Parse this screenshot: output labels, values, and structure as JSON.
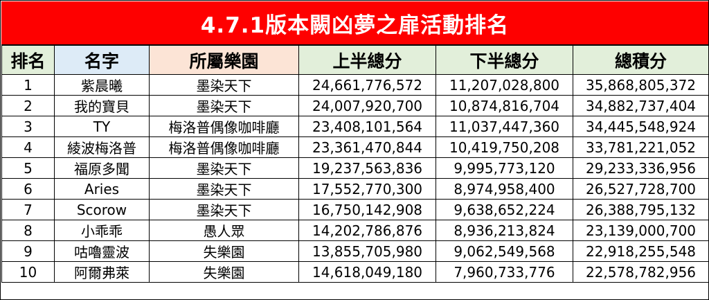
{
  "title": "4.7.1版本闕凶夢之扉活動排名",
  "colors": {
    "title_bg": "#fe0000",
    "title_text": "#ffffff",
    "header_rank_bg": "#e2efda",
    "header_name_bg": "#ddebf7",
    "header_park_bg": "#fce4d6",
    "header_num_bg": "#e2efda"
  },
  "headers": {
    "rank": "排名",
    "name": "名字",
    "park": "所屬樂園",
    "first_half": "上半總分",
    "second_half": "下半總分",
    "total": "總積分"
  },
  "rows": [
    {
      "rank": "1",
      "name": "紫晨曦",
      "park": "墨染天下",
      "first_half": "24,661,776,572",
      "second_half": "11,207,028,800",
      "total": "35,868,805,372"
    },
    {
      "rank": "2",
      "name": "我的寶貝",
      "park": "墨染天下",
      "first_half": "24,007,920,700",
      "second_half": "10,874,816,704",
      "total": "34,882,737,404"
    },
    {
      "rank": "3",
      "name": "TY",
      "park": "梅洛普偶像咖啡廳",
      "first_half": "23,408,101,564",
      "second_half": "11,037,447,360",
      "total": "34,445,548,924"
    },
    {
      "rank": "4",
      "name": "綾波梅洛普",
      "park": "梅洛普偶像咖啡廳",
      "first_half": "23,361,470,844",
      "second_half": "10,419,750,208",
      "total": "33,781,221,052"
    },
    {
      "rank": "5",
      "name": "福原多聞",
      "park": "墨染天下",
      "first_half": "19,237,563,836",
      "second_half": "9,995,773,120",
      "total": "29,233,336,956"
    },
    {
      "rank": "6",
      "name": "Aries",
      "park": "墨染天下",
      "first_half": "17,552,770,300",
      "second_half": "8,974,958,400",
      "total": "26,527,728,700"
    },
    {
      "rank": "7",
      "name": "Scorow",
      "park": "墨染天下",
      "first_half": "16,750,142,908",
      "second_half": "9,638,652,224",
      "total": "26,388,795,132"
    },
    {
      "rank": "8",
      "name": "小乖乖",
      "park": "愚人眾",
      "first_half": "14,202,786,876",
      "second_half": "8,936,213,824",
      "total": "23,139,000,700"
    },
    {
      "rank": "9",
      "name": "咕嚕靈波",
      "park": "失樂園",
      "first_half": "13,855,705,980",
      "second_half": "9,062,549,568",
      "total": "22,918,255,548"
    },
    {
      "rank": "10",
      "name": "阿爾弗萊",
      "park": "失樂園",
      "first_half": "14,618,049,180",
      "second_half": "7,960,733,776",
      "total": "22,578,782,956"
    }
  ]
}
